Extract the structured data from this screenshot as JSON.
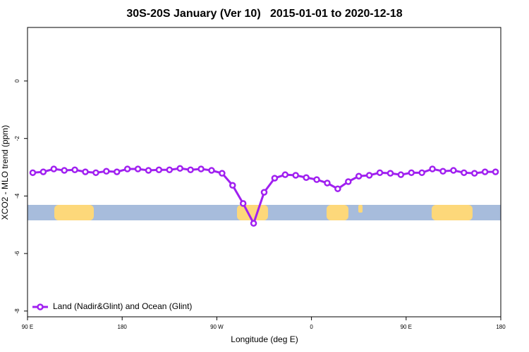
{
  "chart_data": {
    "type": "line",
    "title": "30S-20S January (Ver 10)   2015-01-01 to 2020-12-18",
    "x_label": "Longitude (deg E)",
    "y_label": "XCO2 - MLO trend (ppm)",
    "xlim": [
      90,
      540
    ],
    "ylim": [
      -8.2,
      1.86
    ],
    "xticks": [
      {
        "value": 90,
        "label": "90 E"
      },
      180,
      {
        "value": 270,
        "label": "90 W"
      },
      {
        "value": 360,
        "label": "0"
      },
      {
        "value": 450,
        "label": "90 E"
      },
      {
        "value": 540,
        "label": "180"
      }
    ],
    "yticks": [
      0,
      -2,
      -4,
      -6,
      -8
    ],
    "legend": "bottom-left",
    "series": [
      {
        "name": "Land (Nadir&Glint) and Ocean (Glint)",
        "color": "#a020f0",
        "x": [
          95,
          105,
          115,
          125,
          135,
          145,
          155,
          165,
          175,
          185,
          195,
          205,
          215,
          225,
          235,
          245,
          255,
          265,
          275,
          285,
          295,
          305,
          315,
          325,
          335,
          345,
          355,
          365,
          375,
          385,
          395,
          405,
          415,
          425,
          435,
          445,
          455,
          465,
          475,
          485,
          495,
          505,
          515,
          525,
          535
        ],
        "values": [
          -3.19,
          -3.16,
          -3.06,
          -3.11,
          -3.09,
          -3.16,
          -3.19,
          -3.14,
          -3.16,
          -3.06,
          -3.06,
          -3.11,
          -3.09,
          -3.09,
          -3.04,
          -3.09,
          -3.06,
          -3.11,
          -3.21,
          -3.63,
          -4.26,
          -4.95,
          -3.87,
          -3.38,
          -3.26,
          -3.28,
          -3.36,
          -3.43,
          -3.55,
          -3.75,
          -3.5,
          -3.31,
          -3.28,
          -3.19,
          -3.21,
          -3.26,
          -3.19,
          -3.19,
          -3.06,
          -3.14,
          -3.11,
          -3.19,
          -3.21,
          -3.16,
          -3.16
        ]
      }
    ]
  }
}
